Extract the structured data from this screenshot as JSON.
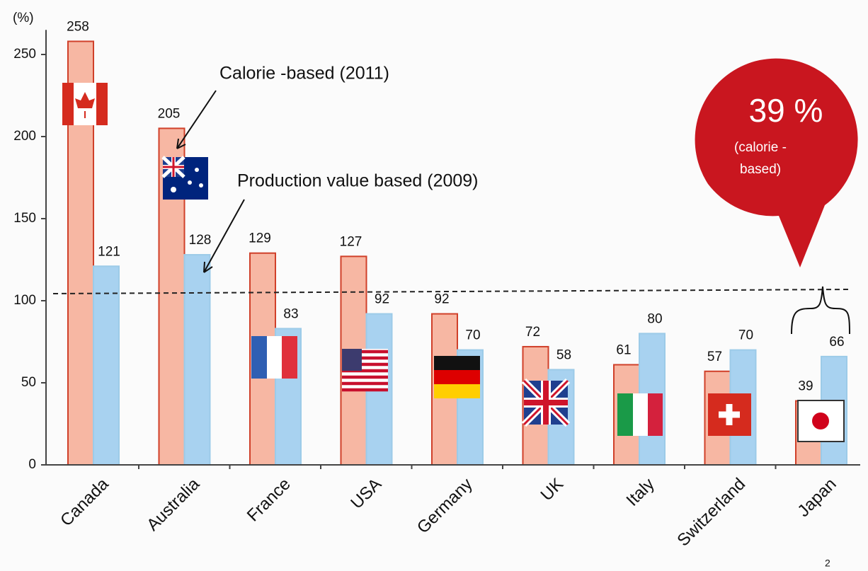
{
  "chart_data": {
    "type": "bar",
    "y_label": "(%)",
    "categories": [
      "Canada",
      "Australia",
      "France",
      "USA",
      "Germany",
      "UK",
      "Italy",
      "Switzerland",
      "Japan"
    ],
    "series": [
      {
        "name": "Calorie -based (2011)",
        "color": "#f7b7a3",
        "values": [
          258,
          205,
          129,
          127,
          92,
          72,
          61,
          57,
          39
        ]
      },
      {
        "name": "Production value based (2009)",
        "color": "#a8d2f0",
        "values": [
          121,
          128,
          83,
          92,
          70,
          58,
          80,
          70,
          66
        ]
      }
    ],
    "ylim": [
      0,
      265
    ],
    "yticks": [
      0,
      50,
      100,
      150,
      200,
      250
    ],
    "grid": false
  },
  "callout": {
    "title": "39 %",
    "lines": [
      "(calorie -",
      "based)"
    ]
  },
  "page_number": "2"
}
